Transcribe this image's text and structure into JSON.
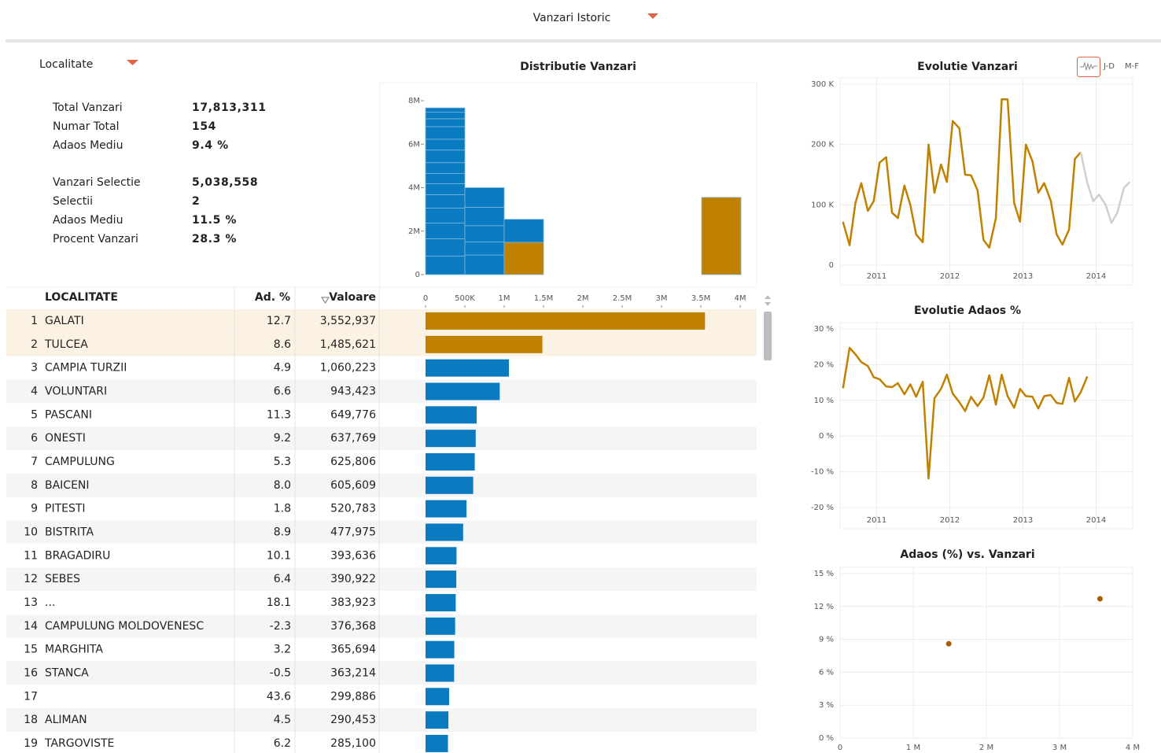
{
  "header": {
    "title": "Vanzari Istoric"
  },
  "panel": {
    "title": "Localitate"
  },
  "summary": {
    "totals": [
      {
        "label": "Total Vanzari",
        "value": "17,813,311"
      },
      {
        "label": "Numar Total",
        "value": "154"
      },
      {
        "label": "Adaos Mediu",
        "value": "9.4 %"
      }
    ],
    "selection": [
      {
        "label": "Vanzari Selectie",
        "value": "5,038,558"
      },
      {
        "label": "Selectii",
        "value": "2"
      },
      {
        "label": "Adaos Mediu",
        "value": "11.5 %"
      },
      {
        "label": "Procent Vanzari",
        "value": "28.3 %"
      }
    ]
  },
  "table": {
    "columns": [
      "LOCALITATE",
      "Ad. %",
      "Valoare"
    ],
    "selected_rows": [
      0,
      1
    ],
    "rows": [
      {
        "rank": 1,
        "adaos": "12.7"
      },
      {
        "rank": 2,
        "adaos": "8.6"
      },
      {
        "rank": 3,
        "adaos": "4.9"
      },
      {
        "rank": 4,
        "adaos": "6.6"
      },
      {
        "rank": 5,
        "adaos": "11.3"
      },
      {
        "rank": 6,
        "adaos": "9.2"
      },
      {
        "rank": 7,
        "adaos": "5.3"
      },
      {
        "rank": 8,
        "adaos": "8.0"
      },
      {
        "rank": 9,
        "adaos": "1.8"
      },
      {
        "rank": 10,
        "adaos": "8.9"
      },
      {
        "rank": 11,
        "adaos": "10.1"
      },
      {
        "rank": 12,
        "adaos": "6.4"
      },
      {
        "rank": 13,
        "adaos": "18.1"
      },
      {
        "rank": 14,
        "adaos": "-2.3"
      },
      {
        "rank": 15,
        "adaos": "3.2"
      },
      {
        "rank": 16,
        "adaos": "-0.5"
      },
      {
        "rank": 17,
        "adaos": "43.6"
      },
      {
        "rank": 18,
        "adaos": "4.5"
      },
      {
        "rank": 19,
        "adaos": "6.2"
      }
    ]
  },
  "toggles": [
    "J-D",
    "M-F"
  ],
  "chart_data": [
    {
      "type": "hbar",
      "categories": [
        "GALATI",
        "TULCEA",
        "CAMPIA TURZII",
        "VOLUNTARI",
        "PASCANI",
        "ONESTI",
        "CAMPULUNG",
        "BAICENI",
        "PITESTI",
        "BISTRITA",
        "BRAGADIRU",
        "SEBES",
        "...",
        "CAMPULUNG MOLDOVENESC",
        "MARGHITA",
        "STANCA",
        null,
        "ALIMAN",
        "TARGOVISTE"
      ],
      "values": [
        3552937,
        1485621,
        1060223,
        943423,
        649776,
        637769,
        625806,
        605609,
        520783,
        477975,
        393636,
        390922,
        383923,
        376368,
        365694,
        363214,
        299886,
        290453,
        285100
      ],
      "value_labels": [
        "3,552,937",
        "1,485,621",
        "1,060,223",
        "943,423",
        "649,776",
        "637,769",
        "625,806",
        "605,609",
        "520,783",
        "477,975",
        "393,636",
        "390,922",
        "383,923",
        "376,368",
        "365,694",
        "363,214",
        "299,886",
        "290,453",
        "285,100"
      ],
      "colors": [
        "#c08000",
        "#c08000",
        "#0a7bc0",
        "#0a7bc0",
        "#0a7bc0",
        "#0a7bc0",
        "#0a7bc0",
        "#0a7bc0",
        "#0a7bc0",
        "#0a7bc0",
        "#0a7bc0",
        "#0a7bc0",
        "#0a7bc0",
        "#0a7bc0",
        "#0a7bc0",
        "#0a7bc0",
        "#0a7bc0",
        "#0a7bc0",
        "#0a7bc0"
      ],
      "xlim": [
        0,
        4000000
      ],
      "xticks": [
        0,
        {
          "value": 500000,
          "label": "500K"
        },
        {
          "value": 1000000,
          "label": "1M"
        },
        {
          "value": 1500000,
          "label": "1.5M"
        },
        {
          "value": 2000000,
          "label": "2M"
        },
        {
          "value": 2500000,
          "label": "2.5M"
        },
        {
          "value": 3000000,
          "label": "3M"
        },
        {
          "value": 3500000,
          "label": "3.5M"
        },
        {
          "value": 4000000,
          "label": "4M"
        }
      ]
    },
    {
      "type": "mosaic",
      "title": "Distributie Vanzari",
      "ylim": [
        0,
        8000000
      ],
      "yticks": [
        0,
        {
          "value": 2000000,
          "label": "2M"
        },
        {
          "value": 4000000,
          "label": "4M"
        },
        {
          "value": 6000000,
          "label": "6M"
        },
        {
          "value": 8000000,
          "label": "8M"
        }
      ],
      "columns": [
        {
          "values": [
            850000,
            800000,
            720000,
            690000,
            620000,
            500000,
            470000,
            500000,
            580000,
            500000,
            580000,
            360000,
            300000,
            200000
          ],
          "colors": [
            "#0a7bc0",
            "#0a7bc0",
            "#0a7bc0",
            "#0a7bc0",
            "#0a7bc0",
            "#0a7bc0",
            "#0a7bc0",
            "#0a7bc0",
            "#0a7bc0",
            "#0a7bc0",
            "#0a7bc0",
            "#0a7bc0",
            "#0a7bc0",
            "#0a7bc0"
          ]
        },
        {
          "values": [
            900000,
            600000,
            750000,
            850000,
            900000
          ],
          "colors": [
            "#0a7bc0",
            "#0a7bc0",
            "#0a7bc0",
            "#0a7bc0",
            "#0a7bc0"
          ]
        },
        {
          "values": [
            1485621,
            1060223
          ],
          "colors": [
            "#c08000",
            "#0a7bc0"
          ]
        },
        {
          "values": [
            3552937
          ],
          "colors": [
            "#c08000"
          ]
        }
      ]
    },
    {
      "type": "line",
      "title": "Evolutie Vanzari",
      "x": [
        2010.54,
        2010.63,
        2010.71,
        2010.79,
        2010.88,
        2010.96,
        2011.04,
        2011.13,
        2011.21,
        2011.29,
        2011.38,
        2011.46,
        2011.54,
        2011.63,
        2011.71,
        2011.79,
        2011.88,
        2011.96,
        2012.04,
        2012.13,
        2012.21,
        2012.29,
        2012.38,
        2012.46,
        2012.54,
        2012.63,
        2012.71,
        2012.79,
        2012.88,
        2012.96,
        2013.04,
        2013.13,
        2013.21,
        2013.29,
        2013.38,
        2013.46,
        2013.54,
        2013.63,
        2013.71,
        2013.79,
        2013.88,
        2013.96,
        2014.04,
        2014.13,
        2014.21,
        2014.29,
        2014.38,
        2014.46
      ],
      "xlim": [
        2010.5,
        2014.5
      ],
      "xticks": [
        2011,
        2012,
        2013,
        2014
      ],
      "ylim": [
        0,
        300000
      ],
      "yticks": [
        0,
        {
          "value": 100000,
          "label": "100 K"
        },
        {
          "value": 200000,
          "label": "200 K"
        },
        {
          "value": 300000,
          "label": "300 K"
        }
      ],
      "grid": true,
      "series": [
        {
          "color": "#c08000",
          "values": [
            72000,
            33000,
            103000,
            136000,
            90000,
            106000,
            170000,
            179000,
            87000,
            78000,
            132000,
            100000,
            51000,
            38000,
            200000,
            120000,
            167000,
            138000,
            239000,
            227000,
            150000,
            149000,
            124000,
            42000,
            29000,
            78000,
            275000,
            275000,
            103000,
            72000,
            200000,
            172000,
            120000,
            136000,
            107000,
            51000,
            34000,
            59000,
            176000,
            187000,
            null,
            null,
            null,
            null,
            null,
            null,
            null,
            null
          ]
        },
        {
          "color": "#cfcfcf",
          "values": [
            null,
            null,
            null,
            null,
            null,
            null,
            null,
            null,
            null,
            null,
            null,
            null,
            null,
            null,
            null,
            null,
            null,
            null,
            null,
            null,
            null,
            null,
            null,
            null,
            null,
            null,
            null,
            null,
            null,
            null,
            null,
            null,
            null,
            null,
            null,
            null,
            null,
            null,
            null,
            187000,
            136000,
            106000,
            117000,
            100000,
            70000,
            87000,
            128000,
            138000
          ]
        }
      ]
    },
    {
      "type": "line",
      "title": "Evolutie Adaos %",
      "x": [
        2010.54,
        2010.63,
        2010.71,
        2010.79,
        2010.88,
        2010.96,
        2011.04,
        2011.13,
        2011.21,
        2011.29,
        2011.38,
        2011.46,
        2011.54,
        2011.63,
        2011.71,
        2011.79,
        2011.88,
        2011.96,
        2012.04,
        2012.13,
        2012.21,
        2012.29,
        2012.38,
        2012.46,
        2012.54,
        2012.63,
        2012.71,
        2012.79,
        2012.88,
        2012.96,
        2013.04,
        2013.13,
        2013.21,
        2013.29,
        2013.38,
        2013.46,
        2013.54,
        2013.63,
        2013.71,
        2013.79,
        2013.88,
        2013.96,
        2014.04,
        2014.13,
        2014.21,
        2014.29,
        2014.38,
        2014.46
      ],
      "xlim": [
        2010.5,
        2014.5
      ],
      "xticks": [
        2011,
        2012,
        2013,
        2014
      ],
      "ylim": [
        -20,
        30
      ],
      "yticks": [
        {
          "value": -20,
          "label": "-20 %"
        },
        {
          "value": -10,
          "label": "-10 %"
        },
        {
          "value": 0,
          "label": "0 %"
        },
        {
          "value": 10,
          "label": "10 %"
        },
        {
          "value": 20,
          "label": "20 %"
        },
        {
          "value": 30,
          "label": "30 %"
        }
      ],
      "grid": true,
      "series": [
        {
          "color": "#c08000",
          "values": [
            13.4,
            24.7,
            22.9,
            20.7,
            19.6,
            16.5,
            15.9,
            13.9,
            13.7,
            14.8,
            11.7,
            14.5,
            11.0,
            15.2,
            -11.9,
            10.6,
            13.2,
            17.2,
            11.9,
            9.5,
            7.0,
            11.0,
            8.4,
            10.8,
            17.0,
            8.8,
            17.2,
            11.2,
            7.9,
            13.2,
            11.2,
            11.0,
            7.7,
            11.2,
            11.5,
            9.3,
            9.0,
            16.3,
            9.7,
            12.3,
            16.7,
            null,
            null,
            null,
            null,
            null,
            null,
            null
          ]
        }
      ]
    },
    {
      "type": "scatter",
      "title": "Adaos (%) vs. Vanzari",
      "x": [
        1485621,
        3552937
      ],
      "values": [
        8.6,
        12.7
      ],
      "color": "#a85e00",
      "xlim": [
        0,
        4000000
      ],
      "xticks": [
        0,
        {
          "value": 1000000,
          "label": "1 M"
        },
        {
          "value": 2000000,
          "label": "2 M"
        },
        {
          "value": 3000000,
          "label": "3 M"
        },
        {
          "value": 4000000,
          "label": "4 M"
        }
      ],
      "ylim": [
        0,
        15
      ],
      "yticks": [
        {
          "value": 0,
          "label": "0 %"
        },
        {
          "value": 3,
          "label": "3 %"
        },
        {
          "value": 6,
          "label": "6 %"
        },
        {
          "value": 9,
          "label": "9 %"
        },
        {
          "value": 12,
          "label": "12 %"
        },
        {
          "value": 15,
          "label": "15 %"
        }
      ],
      "grid": true
    }
  ]
}
